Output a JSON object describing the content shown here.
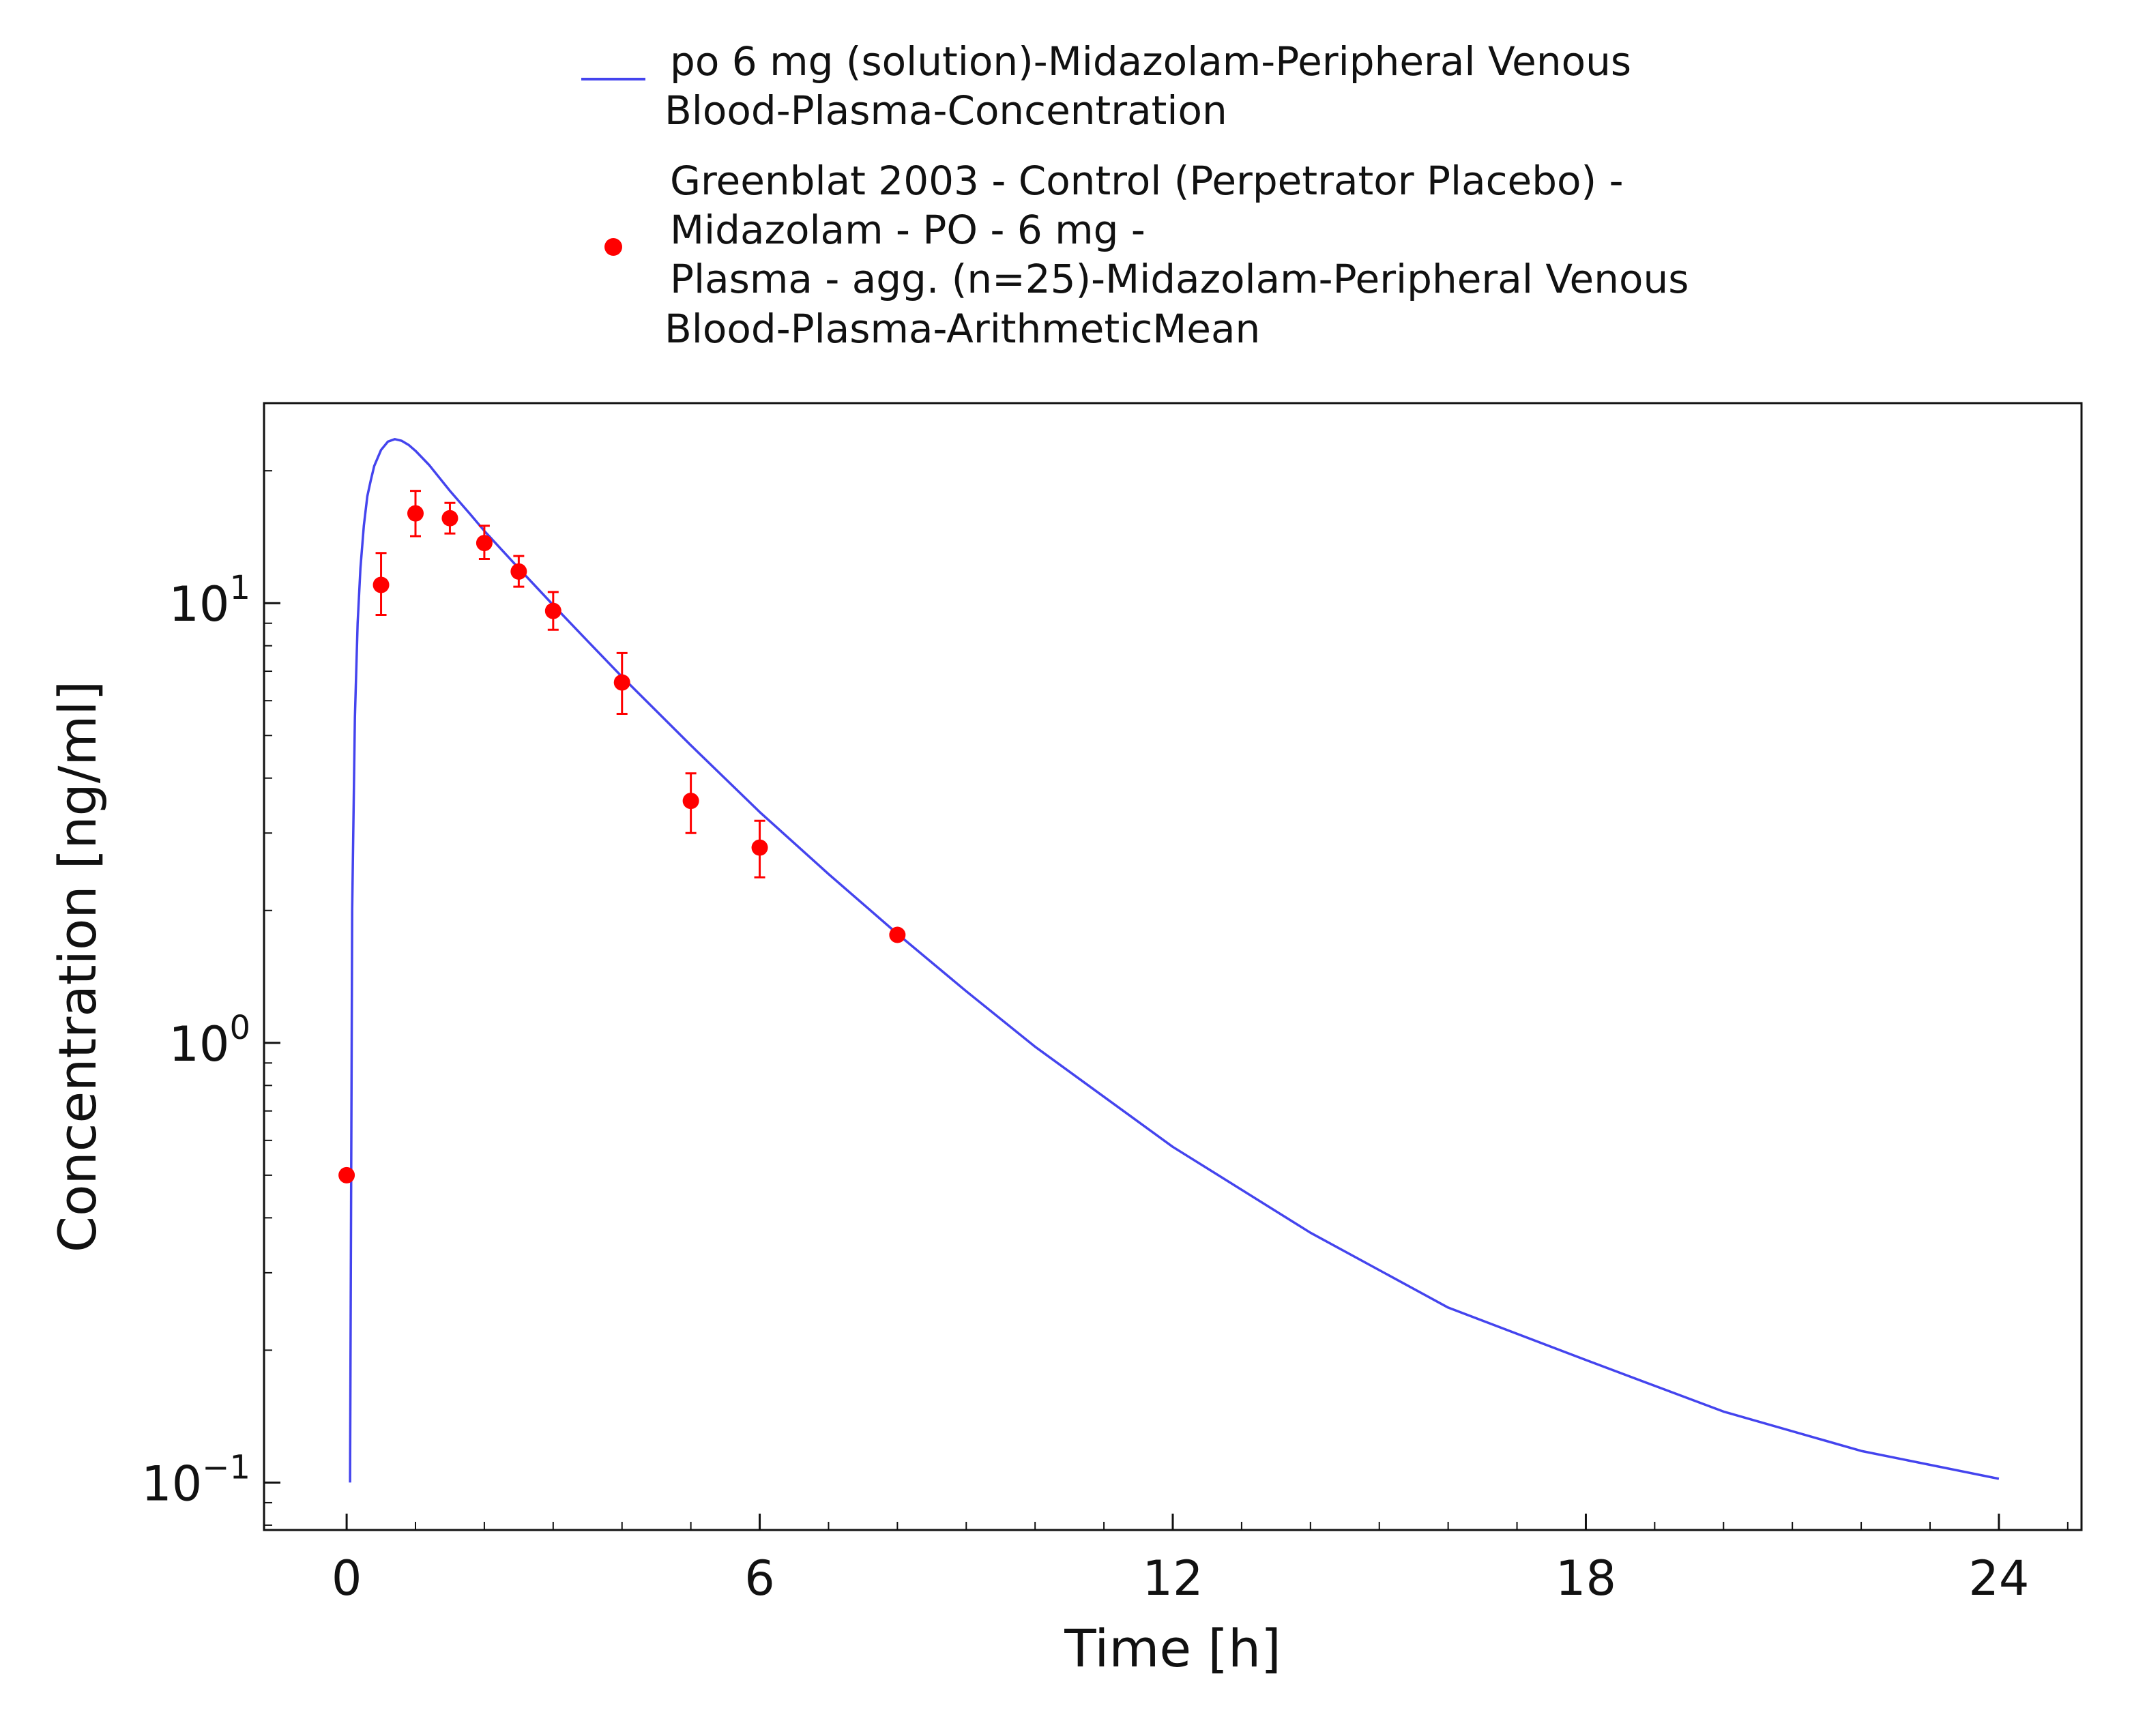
{
  "chart_data": {
    "type": "line",
    "title": "",
    "xlabel": "Time [h]",
    "ylabel": "Concentration [ng/ml]",
    "x_scale": "linear",
    "y_scale": "log",
    "xlim": [
      -1.2,
      25.2
    ],
    "ylim": [
      0.078,
      28.5
    ],
    "x_ticks": [
      0,
      6,
      12,
      18,
      24
    ],
    "x_tick_labels": [
      "0",
      "6",
      "12",
      "18",
      "24"
    ],
    "y_ticks": [
      {
        "value": 0.1,
        "base": "10",
        "exp": "−1"
      },
      {
        "value": 1,
        "base": "10",
        "exp": "0"
      },
      {
        "value": 10,
        "base": "10",
        "exp": "1"
      }
    ],
    "grid": false,
    "legend_position": "top-center",
    "series": [
      {
        "name": "po 6 mg (solution)-Midazolam-Peripheral Venous Blood-Plasma-Concentration",
        "legend_lines": [
          "po 6 mg (solution)-Midazolam-Peripheral Venous",
          "Blood-Plasma-Concentration"
        ],
        "kind": "line",
        "color": "#4444ee",
        "x": [
          0.05,
          0.08,
          0.12,
          0.16,
          0.2,
          0.25,
          0.3,
          0.35,
          0.4,
          0.5,
          0.6,
          0.7,
          0.8,
          0.9,
          1.0,
          1.2,
          1.5,
          1.8,
          2.0,
          2.5,
          3.0,
          3.5,
          4.0,
          5.0,
          6.0,
          7.0,
          8.0,
          9.0,
          10.0,
          12.0,
          14.0,
          16.0,
          18.0,
          20.0,
          22.0,
          24.0
        ],
        "y": [
          0.1,
          2.0,
          5.5,
          9.0,
          12.0,
          15.0,
          17.5,
          19.0,
          20.5,
          22.3,
          23.3,
          23.6,
          23.4,
          22.9,
          22.2,
          20.6,
          18.0,
          15.9,
          14.6,
          12.0,
          9.9,
          8.2,
          6.8,
          4.75,
          3.35,
          2.42,
          1.77,
          1.31,
          0.98,
          0.58,
          0.37,
          0.25,
          0.19,
          0.145,
          0.118,
          0.102
        ]
      },
      {
        "name": "Greenblat 2003 - Control (Perpetrator Placebo) - Midazolam - PO - 6 mg - Plasma - agg. (n=25)-Midazolam-Peripheral Venous Blood-Plasma-ArithmeticMean",
        "legend_lines": [
          "Greenblat 2003 - Control (Perpetrator Placebo) -",
          "Midazolam - PO - 6 mg -",
          "Plasma - agg. (n=25)-Midazolam-Peripheral Venous",
          "Blood-Plasma-ArithmeticMean"
        ],
        "kind": "scatter",
        "color": "#ff0000",
        "points": [
          {
            "x": 0.0,
            "y": 0.5
          },
          {
            "x": 0.5,
            "y": 11.0,
            "lo": 9.4,
            "hi": 13.0
          },
          {
            "x": 1.0,
            "y": 16.0,
            "lo": 14.2,
            "hi": 18.0
          },
          {
            "x": 1.5,
            "y": 15.6,
            "lo": 14.4,
            "hi": 16.9
          },
          {
            "x": 2.0,
            "y": 13.7,
            "lo": 12.6,
            "hi": 15.0
          },
          {
            "x": 2.5,
            "y": 11.8,
            "lo": 10.9,
            "hi": 12.8
          },
          {
            "x": 3.0,
            "y": 9.6,
            "lo": 8.7,
            "hi": 10.6
          },
          {
            "x": 4.0,
            "y": 6.6,
            "lo": 5.6,
            "hi": 7.7
          },
          {
            "x": 5.0,
            "y": 3.55,
            "lo": 3.0,
            "hi": 4.1
          },
          {
            "x": 6.0,
            "y": 2.78,
            "lo": 2.38,
            "hi": 3.2
          },
          {
            "x": 8.0,
            "y": 1.76
          }
        ]
      }
    ]
  }
}
